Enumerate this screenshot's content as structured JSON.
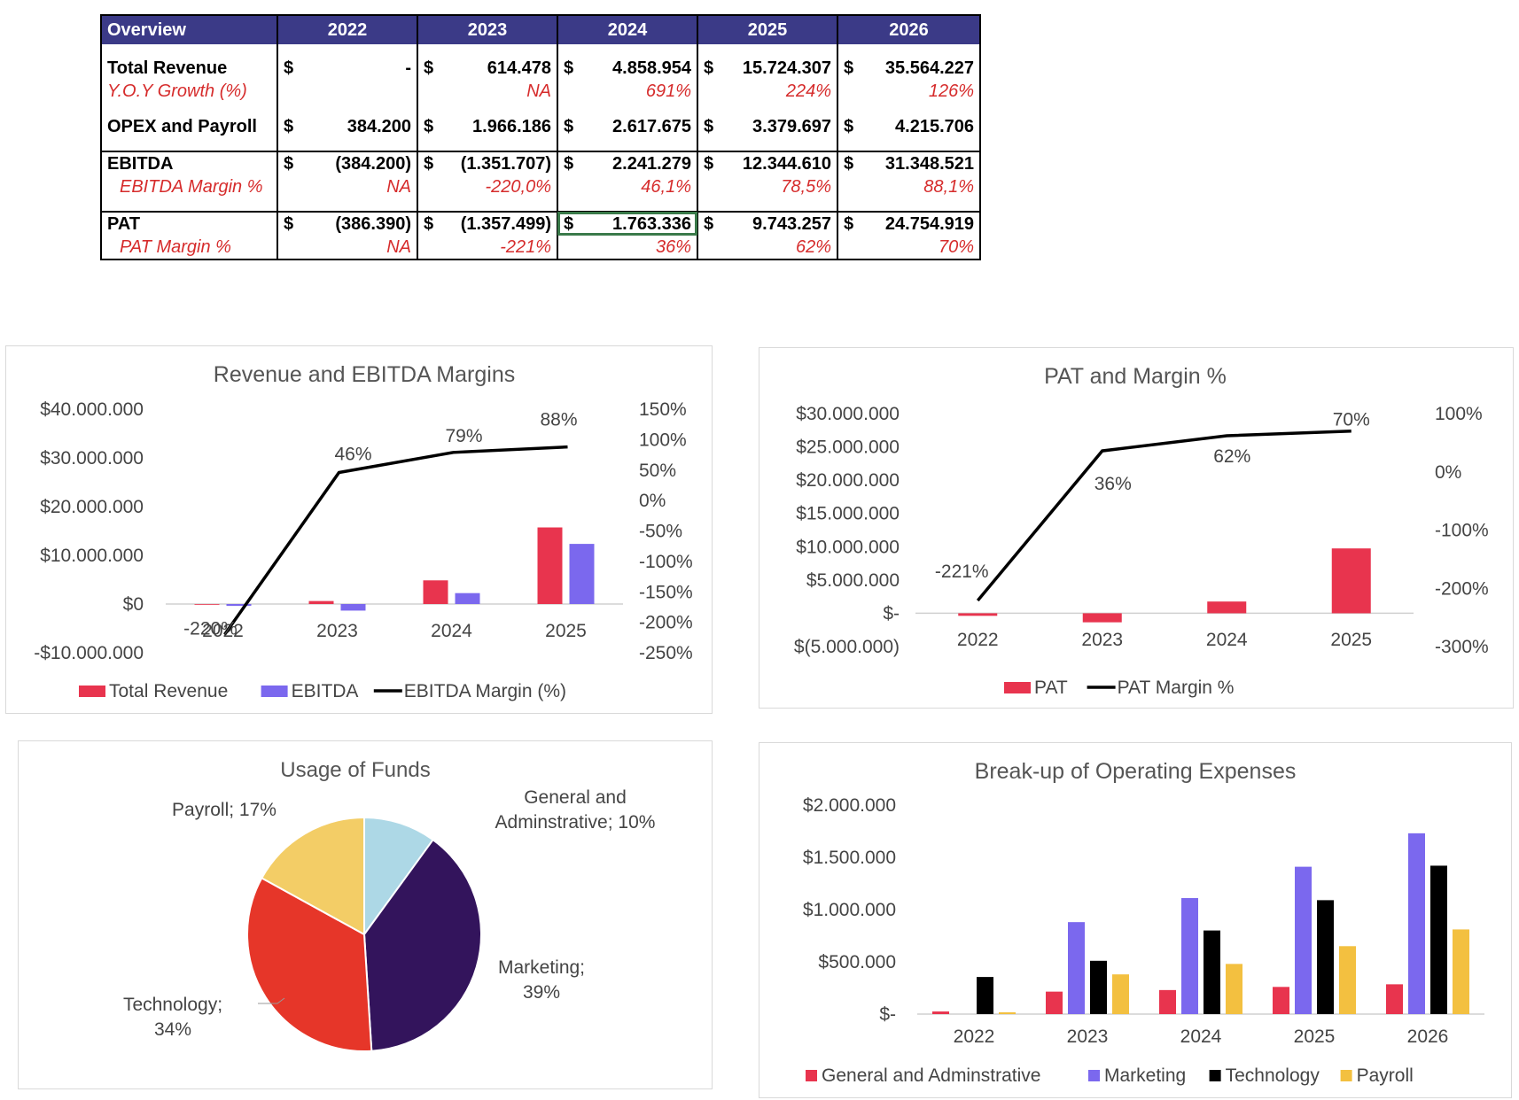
{
  "table": {
    "headers": [
      "Overview",
      "2022",
      "2023",
      "2024",
      "2025",
      "2026"
    ],
    "rows": {
      "total_revenue": {
        "label": "Total Revenue",
        "values": [
          "-",
          "614.478",
          "4.858.954",
          "15.724.307",
          "35.564.227"
        ]
      },
      "yoy_growth": {
        "label": "Y.O.Y Growth (%)",
        "values": [
          "",
          "NA",
          "691%",
          "224%",
          "126%"
        ]
      },
      "opex": {
        "label": "OPEX and Payroll",
        "values": [
          "384.200",
          "1.966.186",
          "2.617.675",
          "3.379.697",
          "4.215.706"
        ]
      },
      "ebitda": {
        "label": "EBITDA",
        "values": [
          "(384.200)",
          "(1.351.707)",
          "2.241.279",
          "12.344.610",
          "31.348.521"
        ]
      },
      "ebitda_margin": {
        "label": "EBITDA Margin %",
        "values": [
          "NA",
          "-220,0%",
          "46,1%",
          "78,5%",
          "88,1%"
        ]
      },
      "pat": {
        "label": "PAT",
        "values": [
          "(386.390)",
          "(1.357.499)",
          "1.763.336",
          "9.743.257",
          "24.754.919"
        ]
      },
      "pat_margin": {
        "label": "PAT Margin %",
        "values": [
          "NA",
          "-221%",
          "36%",
          "62%",
          "70%"
        ]
      }
    },
    "currency_symbol": "$",
    "colors": {
      "header_bg": "#3b3a87",
      "accent_red": "#d62c2c",
      "selected_border": "#3a7a4a"
    }
  },
  "chart_data": [
    {
      "id": "rev_ebitda",
      "type": "bar",
      "title": "Revenue and EBITDA Margins",
      "categories": [
        "2022",
        "2023",
        "2024",
        "2025"
      ],
      "series": [
        {
          "name": "Total Revenue",
          "values": [
            0,
            614478,
            4858954,
            15724307
          ],
          "color": "#e8344e",
          "kind": "bar",
          "axis": "left"
        },
        {
          "name": "EBITDA",
          "values": [
            -384200,
            -1351707,
            2241279,
            12344610
          ],
          "color": "#7b68ee",
          "kind": "bar",
          "axis": "left"
        },
        {
          "name": "EBITDA Margin (%)",
          "values": [
            -220,
            46,
            79,
            88
          ],
          "color": "#000000",
          "kind": "line",
          "axis": "right"
        }
      ],
      "line_labels": [
        "-220%",
        "46%",
        "79%",
        "88%"
      ],
      "left_ticks": [
        "$40.000.000",
        "$30.000.000",
        "$20.000.000",
        "$10.000.000",
        "$0",
        "-$10.000.000"
      ],
      "right_ticks": [
        "150%",
        "100%",
        "50%",
        "0%",
        "-50%",
        "-100%",
        "-150%",
        "-200%",
        "-250%"
      ],
      "ylim": [
        -10000000,
        40000000
      ],
      "y2lim": [
        -250,
        150
      ],
      "legend": "bottom"
    },
    {
      "id": "pat_margin",
      "type": "bar",
      "title": "PAT and Margin %",
      "categories": [
        "2022",
        "2023",
        "2024",
        "2025"
      ],
      "series": [
        {
          "name": "PAT",
          "values": [
            -386390,
            -1357499,
            1763336,
            9743257
          ],
          "color": "#e8344e",
          "kind": "bar",
          "axis": "left"
        },
        {
          "name": "PAT Margin %",
          "values": [
            -221,
            36,
            62,
            70
          ],
          "color": "#000000",
          "kind": "line",
          "axis": "right"
        }
      ],
      "line_labels": [
        "-221%",
        "36%",
        "62%",
        "70%"
      ],
      "left_ticks": [
        "$30.000.000",
        "$25.000.000",
        "$20.000.000",
        "$15.000.000",
        "$10.000.000",
        "$5.000.000",
        "$-",
        "$(5.000.000)"
      ],
      "right_ticks": [
        "100%",
        "0%",
        "-100%",
        "-200%",
        "-300%"
      ],
      "ylim": [
        -5000000,
        30000000
      ],
      "y2lim": [
        -300,
        100
      ],
      "legend": "bottom"
    },
    {
      "id": "usage_funds",
      "type": "pie",
      "title": "Usage of Funds",
      "slices": [
        {
          "name": "General and Adminstrative",
          "label": "General and Adminstrative; 10%",
          "value": 10,
          "color": "#add8e6"
        },
        {
          "name": "Marketing",
          "label": "Marketing; 39%",
          "value": 39,
          "color": "#33145c"
        },
        {
          "name": "Technology",
          "label": "Technology; 34%",
          "value": 34,
          "color": "#e63629"
        },
        {
          "name": "Payroll",
          "label": "Payroll; 17%",
          "value": 17,
          "color": "#f3cd66"
        }
      ]
    },
    {
      "id": "opex_breakup",
      "type": "bar",
      "title": "Break-up of Operating Expenses",
      "categories": [
        "2022",
        "2023",
        "2024",
        "2025",
        "2026"
      ],
      "series": [
        {
          "name": "General and Adminstrative",
          "values": [
            25000,
            215000,
            230000,
            260000,
            285000
          ],
          "color": "#e8344e"
        },
        {
          "name": "Marketing",
          "values": [
            0,
            880000,
            1110000,
            1410000,
            1730000
          ],
          "color": "#7b68ee"
        },
        {
          "name": "Technology",
          "values": [
            355000,
            510000,
            800000,
            1090000,
            1420000
          ],
          "color": "#000000"
        },
        {
          "name": "Payroll",
          "values": [
            5000,
            380000,
            480000,
            650000,
            810000
          ],
          "color": "#f3c040"
        }
      ],
      "ticks": [
        "$2.000.000",
        "$1.500.000",
        "$1.000.000",
        "$500.000",
        "$-"
      ],
      "ylim": [
        0,
        2000000
      ],
      "legend": "bottom"
    }
  ]
}
